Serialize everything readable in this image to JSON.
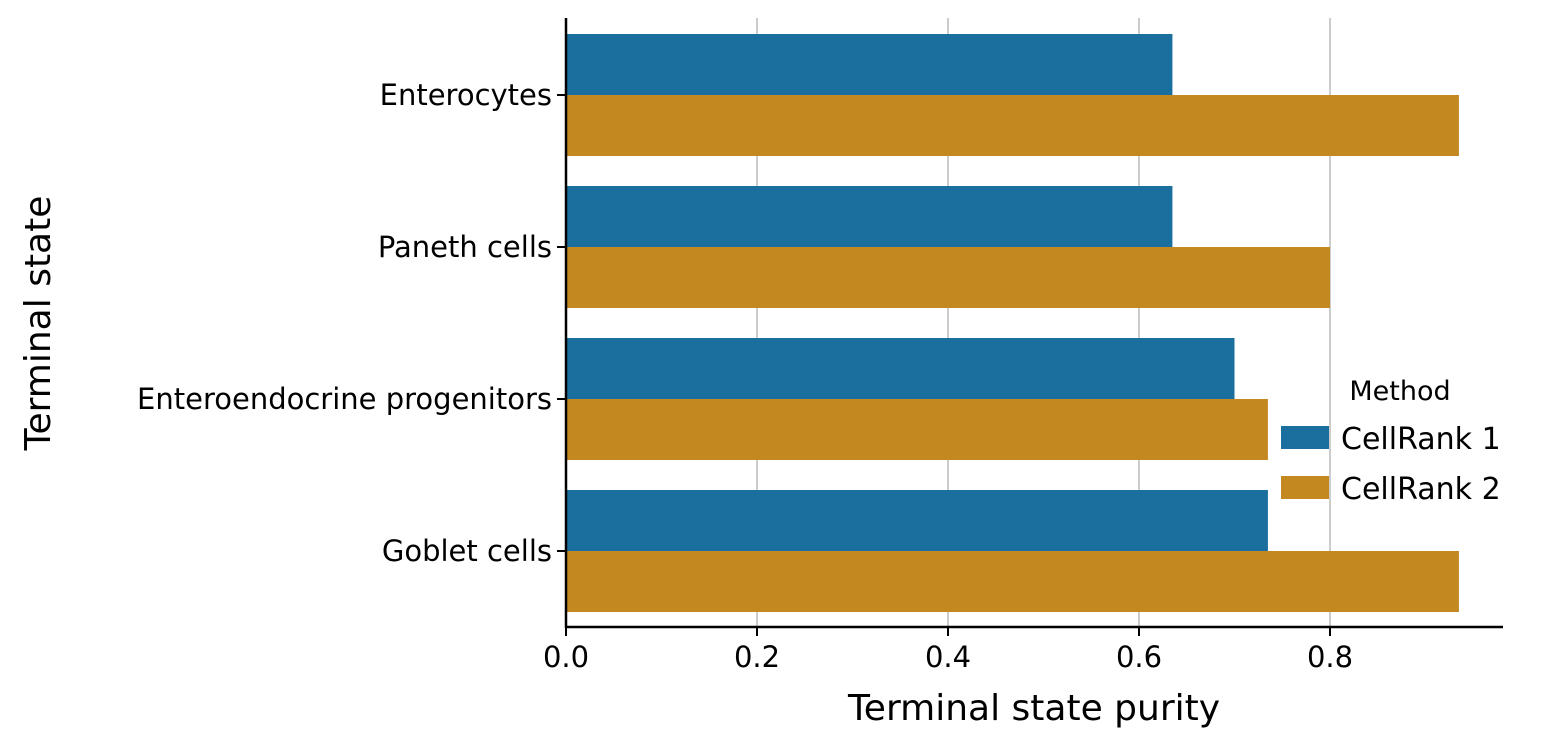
{
  "chart_data": {
    "type": "bar",
    "orientation": "horizontal",
    "categories": [
      "Enterocytes",
      "Paneth cells",
      "Enteroendocrine progenitors",
      "Goblet cells"
    ],
    "series": [
      {
        "name": "CellRank 1",
        "color": "#1a6f9f",
        "values": [
          0.635,
          0.635,
          0.7,
          0.735
        ]
      },
      {
        "name": "CellRank 2",
        "color": "#c38820",
        "values": [
          0.935,
          0.8,
          0.735,
          0.935
        ]
      }
    ],
    "xlabel": "Terminal state purity",
    "ylabel": "Terminal state",
    "xlim": [
      0,
      0.98
    ],
    "xticks": [
      "0.0",
      "0.2",
      "0.4",
      "0.6",
      "0.8"
    ],
    "grid": "vertical",
    "legend": {
      "title": "Method",
      "placement": "center-right"
    }
  }
}
